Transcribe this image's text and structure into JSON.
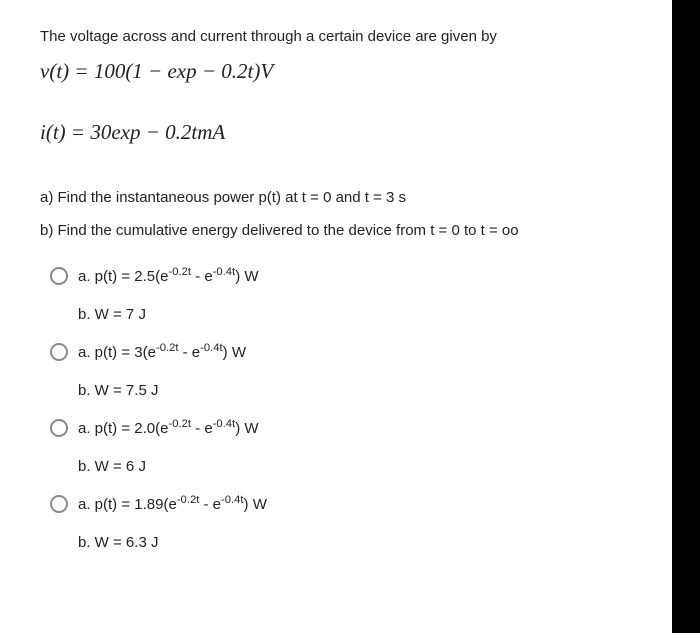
{
  "intro": "The voltage across and current through a certain device are given by",
  "equations": {
    "v": "v(t) = 100(1 − exp − 0.2t)V",
    "i": "i(t) = 30exp − 0.2tmA"
  },
  "questions": {
    "a": "a) Find the instantaneous power p(t) at  t = 0 and t = 3 s",
    "b": "b) Find the cumulative energy delivered to the device from t = 0 to t = oo"
  },
  "options": [
    {
      "a_pre": "a. p(t) = 2.5(e",
      "a_sup1": "-0.2t",
      "a_mid": " - e",
      "a_sup2": "-0.4t",
      "a_post": ") W",
      "b": "b. W = 7 J"
    },
    {
      "a_pre": "a. p(t) = 3(e",
      "a_sup1": "-0.2t",
      "a_mid": " - e",
      "a_sup2": "-0.4t",
      "a_post": ") W",
      "b": "b. W = 7.5 J"
    },
    {
      "a_pre": "a. p(t) = 2.0(e",
      "a_sup1": "-0.2t",
      "a_mid": " - e",
      "a_sup2": "-0.4t",
      "a_post": ") W",
      "b": "b. W = 6 J"
    },
    {
      "a_pre": "a. p(t) = 1.89(e",
      "a_sup1": "-0.2t",
      "a_mid": " - e",
      "a_sup2": "-0.4t",
      "a_post": ") W",
      "b": "b. W = 6.3 J"
    }
  ]
}
